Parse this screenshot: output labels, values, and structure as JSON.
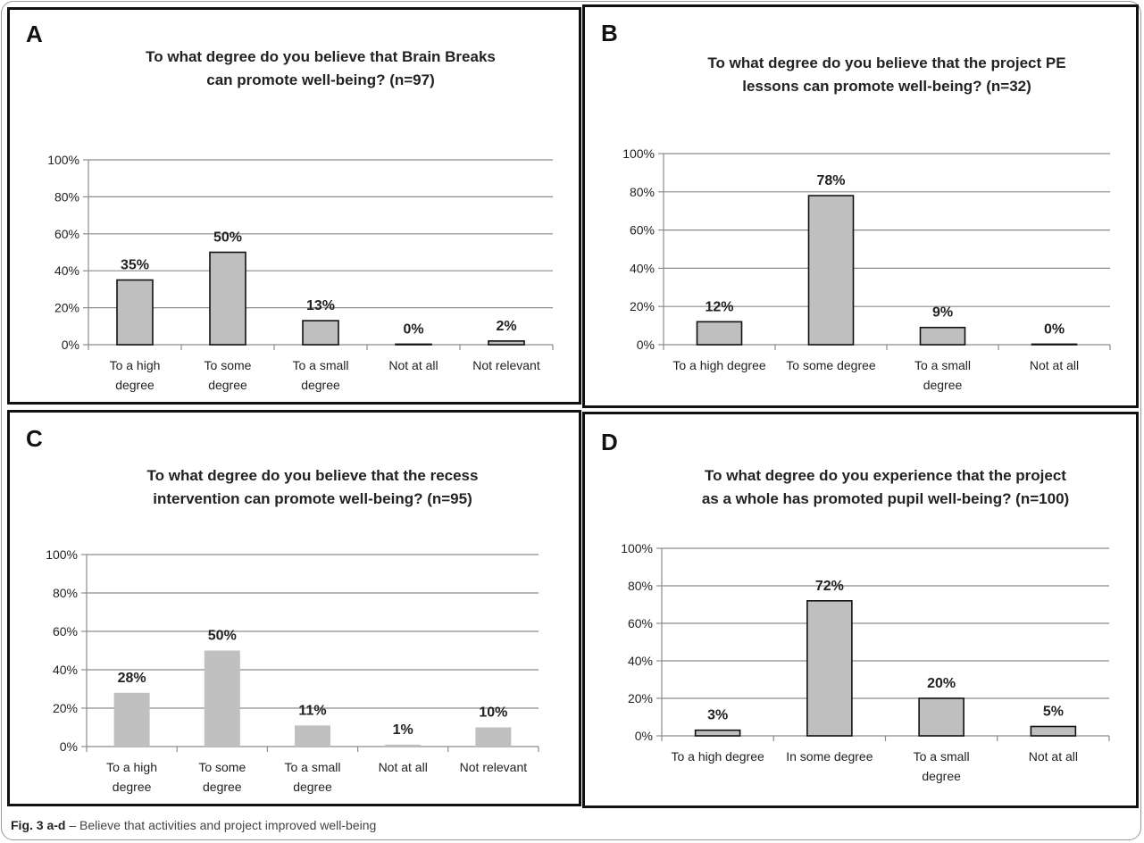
{
  "caption": {
    "fig_label": "Fig. 3",
    "fig_range": "a-d",
    "text": " – Believe that activities and project improved well-being"
  },
  "chart_data": [
    {
      "panel": "A",
      "type": "bar",
      "title": [
        "To what degree do you believe that Brain Breaks",
        "can promote well-being? (n=97)"
      ],
      "categories": [
        [
          "To a high",
          "degree"
        ],
        [
          "To some",
          "degree"
        ],
        [
          "To a small",
          "degree"
        ],
        [
          "Not at all"
        ],
        [
          "Not relevant"
        ]
      ],
      "values": [
        35,
        50,
        13,
        0,
        2
      ],
      "data_labels": [
        "35%",
        "50%",
        "13%",
        "0%",
        "2%"
      ],
      "ylim": [
        0,
        100
      ],
      "yticks": [
        "0%",
        "20%",
        "40%",
        "60%",
        "80%",
        "100%"
      ],
      "grid": true,
      "bar_color": "#bfbfbf",
      "bar_outline": true
    },
    {
      "panel": "B",
      "type": "bar",
      "title": [
        "To what degree do you believe that the project PE",
        "lessons can promote well-being? (n=32)"
      ],
      "categories": [
        [
          "To a high degree"
        ],
        [
          "To some degree"
        ],
        [
          "To a small",
          "degree"
        ],
        [
          "Not at all"
        ]
      ],
      "values": [
        12,
        78,
        9,
        0
      ],
      "data_labels": [
        "12%",
        "78%",
        "9%",
        "0%"
      ],
      "ylim": [
        0,
        100
      ],
      "yticks": [
        "0%",
        "20%",
        "40%",
        "60%",
        "80%",
        "100%"
      ],
      "grid": true,
      "bar_color": "#bfbfbf",
      "bar_outline": true
    },
    {
      "panel": "C",
      "type": "bar",
      "title": [
        "To what degree do you believe that the recess",
        "intervention can promote well-being? (n=95)"
      ],
      "categories": [
        [
          "To a high",
          "degree"
        ],
        [
          "To some",
          "degree"
        ],
        [
          "To a small",
          "degree"
        ],
        [
          "Not at all"
        ],
        [
          "Not relevant"
        ]
      ],
      "values": [
        28,
        50,
        11,
        1,
        10
      ],
      "data_labels": [
        "28%",
        "50%",
        "11%",
        "1%",
        "10%"
      ],
      "ylim": [
        0,
        100
      ],
      "yticks": [
        "0%",
        "20%",
        "40%",
        "60%",
        "80%",
        "100%"
      ],
      "grid": true,
      "bar_color": "#c0c0c0",
      "bar_outline": false
    },
    {
      "panel": "D",
      "type": "bar",
      "title": [
        "To what degree do you experience that the project",
        "as a whole has promoted pupil well-being? (n=100)"
      ],
      "categories": [
        [
          "To a high degree"
        ],
        [
          "In some degree"
        ],
        [
          "To a small",
          "degree"
        ],
        [
          "Not at all"
        ]
      ],
      "values": [
        3,
        72,
        20,
        5
      ],
      "data_labels": [
        "3%",
        "72%",
        "20%",
        "5%"
      ],
      "ylim": [
        0,
        100
      ],
      "yticks": [
        "0%",
        "20%",
        "40%",
        "60%",
        "80%",
        "100%"
      ],
      "grid": true,
      "bar_color": "#bfbfbf",
      "bar_outline": true
    }
  ]
}
